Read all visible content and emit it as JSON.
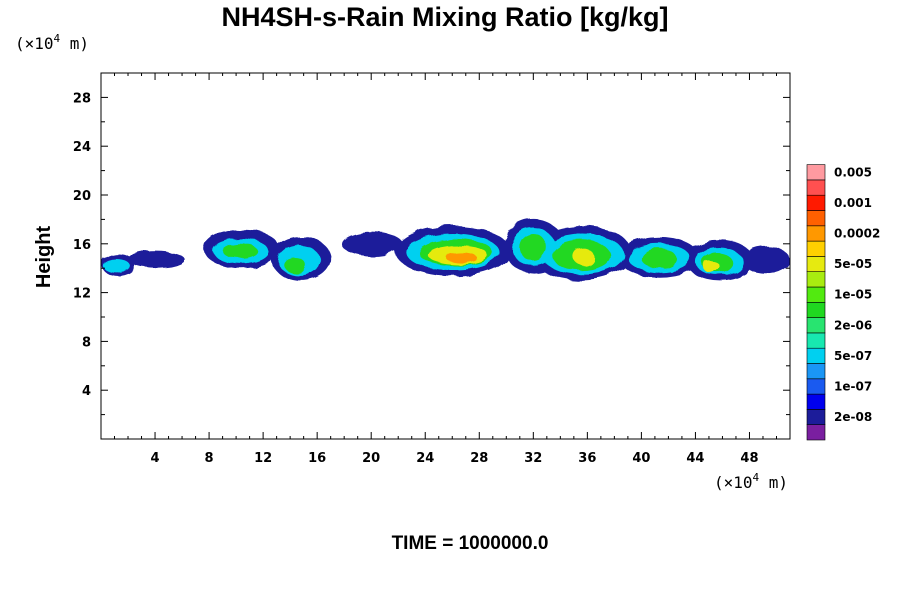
{
  "chart_data": {
    "type": "heatmap",
    "title": "NH4SH-s-Rain Mixing Ratio [kg/kg]",
    "ylabel": "Height",
    "x_unit": {
      "prefix": "(×10",
      "exp": "4",
      "suffix": " m)"
    },
    "y_unit": {
      "prefix": "(×10",
      "exp": "4",
      "suffix": " m)"
    },
    "xlim": [
      0,
      51
    ],
    "ylim": [
      0,
      30
    ],
    "x_ticks": [
      4,
      8,
      12,
      16,
      20,
      24,
      28,
      32,
      36,
      40,
      44,
      48
    ],
    "y_ticks": [
      4,
      8,
      12,
      16,
      20,
      24,
      28
    ],
    "x_tick_labels": [
      "4",
      "8",
      "12",
      "16",
      "20",
      "24",
      "28",
      "32",
      "36",
      "40",
      "44",
      "48"
    ],
    "y_tick_labels": [
      "4",
      "8",
      "12",
      "16",
      "20",
      "24",
      "28"
    ],
    "footer": "TIME = 1000000.0",
    "colorbar": {
      "levels": [
        {
          "color": "#7a1fa0"
        },
        {
          "color": "#1c1c9a",
          "label": "2e-08"
        },
        {
          "color": "#0000ee"
        },
        {
          "color": "#1a5af0",
          "label": "1e-07"
        },
        {
          "color": "#1a96f5"
        },
        {
          "color": "#00d0f0",
          "label": "5e-07"
        },
        {
          "color": "#18e8b0"
        },
        {
          "color": "#28e470",
          "label": "2e-06"
        },
        {
          "color": "#20d820"
        },
        {
          "color": "#52ea10",
          "label": "1e-05"
        },
        {
          "color": "#a8ec10"
        },
        {
          "color": "#e6ea10",
          "label": "5e-05"
        },
        {
          "color": "#ffd000"
        },
        {
          "color": "#ff9800",
          "label": "0.0002"
        },
        {
          "color": "#ff6000"
        },
        {
          "color": "#ff1a00",
          "label": "0.001"
        },
        {
          "color": "#ff5050"
        },
        {
          "color": "#ff9aa0",
          "label": "0.005"
        }
      ]
    },
    "field_description_layers": [
      {
        "level": 1,
        "blobs": [
          {
            "x": [
              0,
              2.5
            ],
            "y": [
              13.4,
              15.2
            ]
          },
          {
            "x": [
              2.0,
              6.2
            ],
            "y": [
              14.0,
              15.4
            ]
          },
          {
            "x": [
              7.6,
              13.2
            ],
            "y": [
              14.0,
              17.2
            ]
          },
          {
            "x": [
              12.6,
              17.0
            ],
            "y": [
              13.0,
              16.6
            ]
          },
          {
            "x": [
              17.8,
              22.3
            ],
            "y": [
              15.0,
              17.0
            ]
          },
          {
            "x": [
              21.8,
              30.3
            ],
            "y": [
              13.3,
              17.5
            ]
          },
          {
            "x": [
              29.8,
              34.3
            ],
            "y": [
              13.6,
              18.0
            ]
          },
          {
            "x": [
              31.8,
              39.3
            ],
            "y": [
              13.0,
              17.5
            ]
          },
          {
            "x": [
              38.3,
              44.3
            ],
            "y": [
              13.3,
              16.5
            ]
          },
          {
            "x": [
              43.3,
              48.3
            ],
            "y": [
              13.0,
              16.3
            ]
          },
          {
            "x": [
              47.5,
              51.0
            ],
            "y": [
              13.5,
              15.8
            ]
          }
        ]
      },
      {
        "level": 5,
        "blobs": [
          {
            "x": [
              0.1,
              2.1
            ],
            "y": [
              13.7,
              14.8
            ]
          },
          {
            "x": [
              8.3,
              12.4
            ],
            "y": [
              14.4,
              16.4
            ]
          },
          {
            "x": [
              13.1,
              16.2
            ],
            "y": [
              13.4,
              15.9
            ]
          },
          {
            "x": [
              22.6,
              29.5
            ],
            "y": [
              13.8,
              16.8
            ]
          },
          {
            "x": [
              30.4,
              33.6
            ],
            "y": [
              14.2,
              17.3
            ]
          },
          {
            "x": [
              32.6,
              38.7
            ],
            "y": [
              13.5,
              16.8
            ]
          },
          {
            "x": [
              39.0,
              43.6
            ],
            "y": [
              13.7,
              16.0
            ]
          },
          {
            "x": [
              44.0,
              47.5
            ],
            "y": [
              13.4,
              15.7
            ]
          }
        ]
      },
      {
        "level": 8,
        "blobs": [
          {
            "x": [
              9.0,
              11.6
            ],
            "y": [
              14.8,
              16.0
            ]
          },
          {
            "x": [
              13.6,
              15.2
            ],
            "y": [
              13.6,
              14.8
            ]
          },
          {
            "x": [
              23.5,
              29.0
            ],
            "y": [
              14.2,
              16.4
            ]
          },
          {
            "x": [
              31.0,
              33.0
            ],
            "y": [
              14.6,
              16.8
            ]
          },
          {
            "x": [
              33.4,
              37.7
            ],
            "y": [
              13.8,
              16.3
            ]
          },
          {
            "x": [
              40.0,
              42.6
            ],
            "y": [
              14.0,
              15.6
            ]
          },
          {
            "x": [
              44.5,
              46.8
            ],
            "y": [
              13.6,
              15.2
            ]
          }
        ]
      },
      {
        "level": 11,
        "blobs": [
          {
            "x": [
              24.2,
              28.6
            ],
            "y": [
              14.3,
              15.9
            ]
          },
          {
            "x": [
              35.0,
              36.5
            ],
            "y": [
              14.2,
              15.6
            ]
          },
          {
            "x": [
              44.6,
              45.8
            ],
            "y": [
              13.6,
              14.6
            ]
          }
        ]
      },
      {
        "level": 13,
        "blobs": [
          {
            "x": [
              25.5,
              27.8
            ],
            "y": [
              14.5,
              15.3
            ]
          }
        ]
      }
    ]
  }
}
